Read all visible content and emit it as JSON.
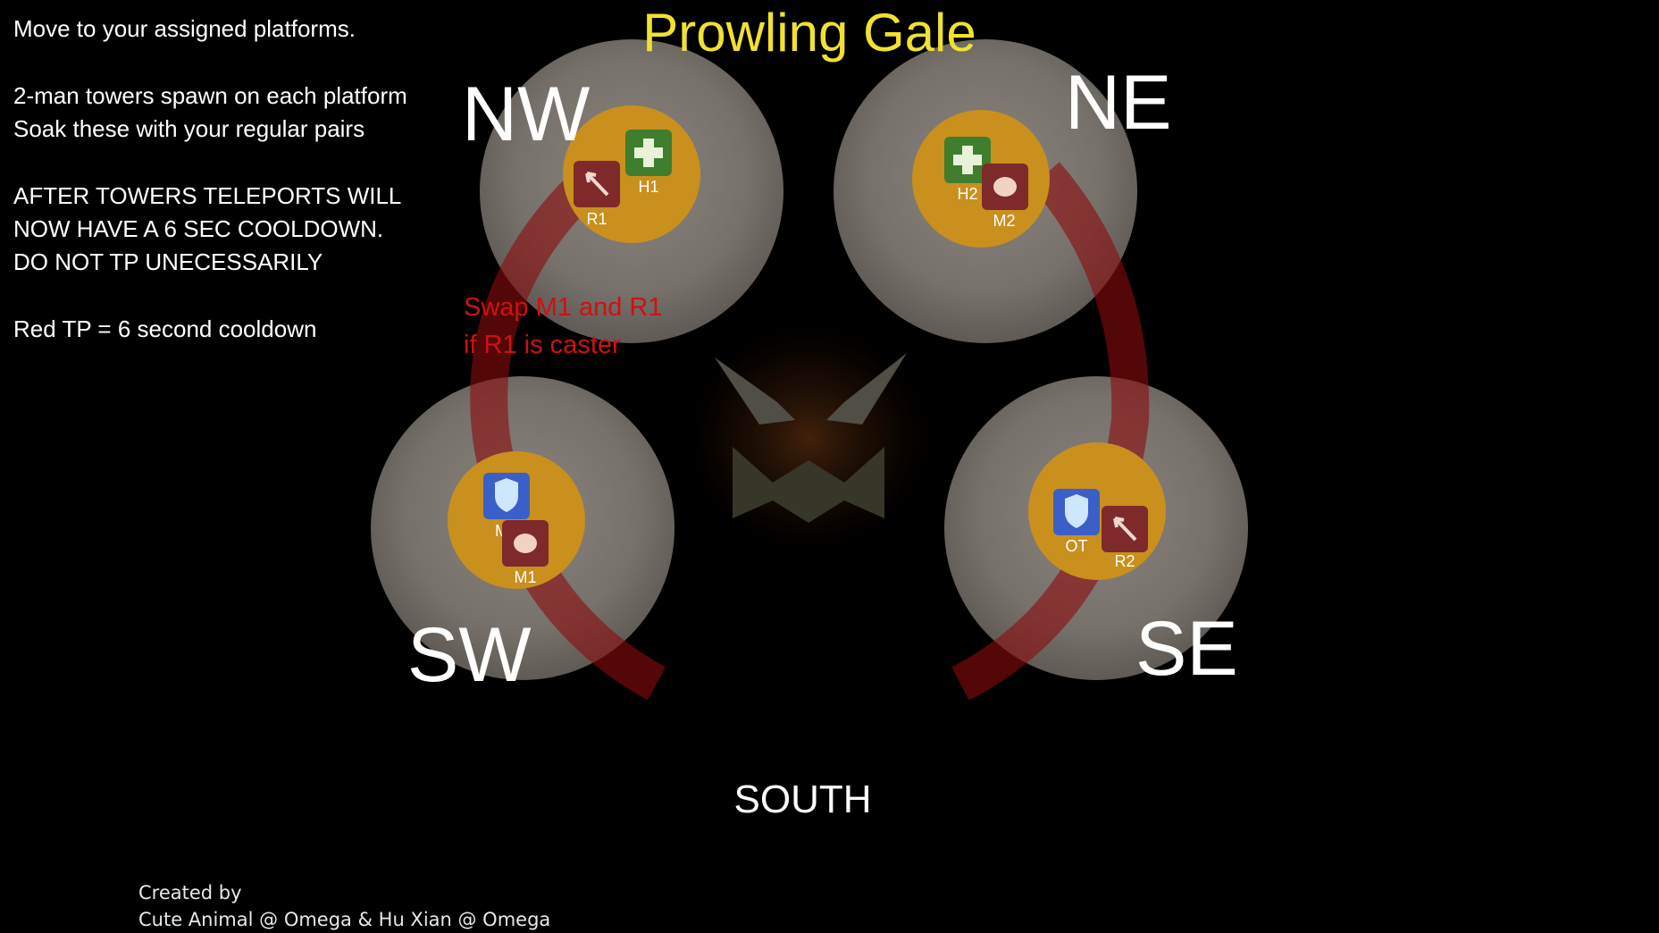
{
  "title": "Prowling Gale",
  "instructions": [
    "Move to your assigned platforms.",
    "2-man towers spawn on each platform",
    "Soak these with your regular pairs",
    "AFTER TOWERS TELEPORTS WILL",
    "NOW HAVE A 6 SEC COOLDOWN.",
    "DO NOT TP UNECESSARILY",
    "Red TP = 6 second cooldown"
  ],
  "directions": {
    "nw": "NW",
    "ne": "NE",
    "sw": "SW",
    "se": "SE",
    "south": "SOUTH"
  },
  "swap_note": {
    "line1": "Swap M1 and R1",
    "line2": "if R1 is caster"
  },
  "roles": {
    "r1": "R1",
    "h1": "H1",
    "h2": "H2",
    "m2": "M2",
    "mt": "MT",
    "m1": "M1",
    "ot": "OT",
    "r2": "R2"
  },
  "role_icons": {
    "r1": "ranged-dps-icon",
    "h1": "healer-icon",
    "h2": "healer-icon",
    "m2": "melee-dps-icon",
    "mt": "tank-icon",
    "m1": "melee-dps-icon",
    "ot": "tank-icon",
    "r2": "ranged-dps-icon"
  },
  "credits": {
    "line1": "Created by",
    "line2": "Cute Animal @ Omega & Hu Xian @ Omega"
  },
  "colors": {
    "background": "#000000",
    "title": "#f0e130",
    "tower": "#c9901e",
    "platform": "#77716b",
    "teleport_arc": "#8a0c0c",
    "swap_text": "#d01010",
    "tank": "#3a5fc8",
    "healer": "#3f7d2f",
    "dps": "#7e2a2a"
  }
}
